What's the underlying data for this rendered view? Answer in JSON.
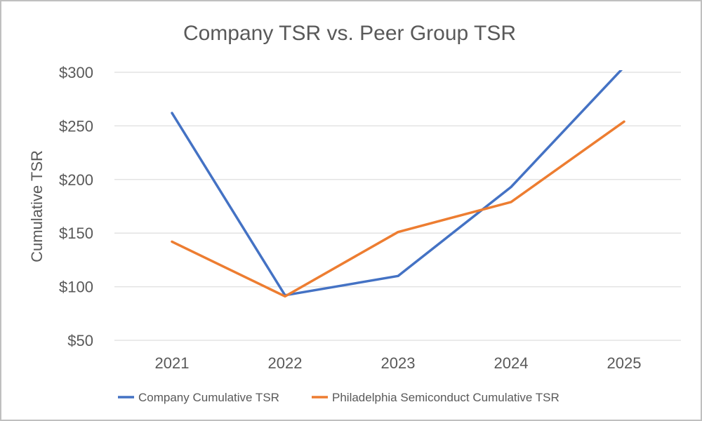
{
  "chart_data": {
    "type": "line",
    "title": "Company TSR vs. Peer Group TSR",
    "xlabel": "",
    "ylabel": "Cumulative TSR",
    "categories": [
      "2021",
      "2022",
      "2023",
      "2024",
      "2025"
    ],
    "yticks": [
      "$50",
      "$100",
      "$150",
      "$200",
      "$250",
      "$300"
    ],
    "ylim": [
      50,
      300
    ],
    "grid": true,
    "legend_position": "bottom",
    "series": [
      {
        "name": "Company Cumulative TSR",
        "color": "#4472C4",
        "values": [
          262,
          92,
          110,
          193,
          305
        ]
      },
      {
        "name": "Philadelphia Semiconduct Cumulative TSR",
        "color": "#ED7D31",
        "values": [
          142,
          91,
          151,
          179,
          254
        ]
      }
    ]
  }
}
